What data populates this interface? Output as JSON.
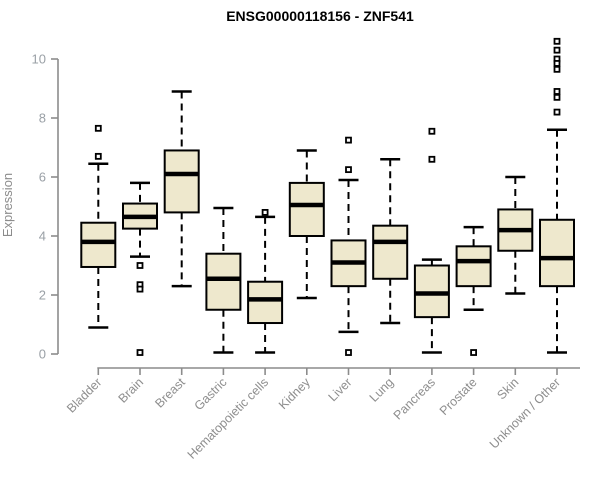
{
  "title": "ENSG00000118156 - ZNF541",
  "chart_data": {
    "type": "box",
    "title": "ENSG00000118156 - ZNF541",
    "xlabel": "",
    "ylabel": "Expression",
    "ylim": [
      0,
      10.7
    ],
    "yticks": [
      0,
      2,
      4,
      6,
      8,
      10
    ],
    "grid": false,
    "legend": "none",
    "categories": [
      "Bladder",
      "Brain",
      "Breast",
      "Gastric",
      "Hematopoietic cells",
      "Kidney",
      "Liver",
      "Lung",
      "Pancreas",
      "Prostate",
      "Skin",
      "Unknown / Other"
    ],
    "boxes": [
      {
        "category": "Bladder",
        "whisker_low": 0.9,
        "q1": 2.95,
        "median": 3.8,
        "q3": 4.45,
        "whisker_high": 6.45,
        "outliers": [
          7.65,
          6.7
        ]
      },
      {
        "category": "Brain",
        "whisker_low": 3.3,
        "q1": 4.25,
        "median": 4.65,
        "q3": 5.1,
        "whisker_high": 5.8,
        "outliers": [
          3.0,
          2.35,
          2.2,
          0.05
        ]
      },
      {
        "category": "Breast",
        "whisker_low": 2.3,
        "q1": 4.8,
        "median": 6.1,
        "q3": 6.9,
        "whisker_high": 8.9,
        "outliers": []
      },
      {
        "category": "Gastric",
        "whisker_low": 0.05,
        "q1": 1.5,
        "median": 2.55,
        "q3": 3.4,
        "whisker_high": 4.95,
        "outliers": []
      },
      {
        "category": "Hematopoietic cells",
        "whisker_low": 0.05,
        "q1": 1.05,
        "median": 1.85,
        "q3": 2.45,
        "whisker_high": 4.65,
        "outliers": [
          4.8
        ]
      },
      {
        "category": "Kidney",
        "whisker_low": 1.9,
        "q1": 4.0,
        "median": 5.05,
        "q3": 5.8,
        "whisker_high": 6.9,
        "outliers": []
      },
      {
        "category": "Liver",
        "whisker_low": 0.75,
        "q1": 2.3,
        "median": 3.1,
        "q3": 3.85,
        "whisker_high": 5.9,
        "outliers": [
          7.25,
          6.25,
          0.05
        ]
      },
      {
        "category": "Lung",
        "whisker_low": 1.05,
        "q1": 2.55,
        "median": 3.8,
        "q3": 4.35,
        "whisker_high": 6.6,
        "outliers": []
      },
      {
        "category": "Pancreas",
        "whisker_low": 0.05,
        "q1": 1.25,
        "median": 2.05,
        "q3": 3.0,
        "whisker_high": 3.2,
        "outliers": [
          7.55,
          6.6
        ]
      },
      {
        "category": "Prostate",
        "whisker_low": 1.5,
        "q1": 2.3,
        "median": 3.15,
        "q3": 3.65,
        "whisker_high": 4.3,
        "outliers": [
          0.05
        ]
      },
      {
        "category": "Skin",
        "whisker_low": 2.05,
        "q1": 3.5,
        "median": 4.2,
        "q3": 4.9,
        "whisker_high": 6.0,
        "outliers": []
      },
      {
        "category": "Unknown / Other",
        "whisker_low": 0.05,
        "q1": 2.3,
        "median": 3.25,
        "q3": 4.55,
        "whisker_high": 7.6,
        "outliers": [
          10.6,
          10.3,
          10.0,
          9.85,
          9.65,
          8.9,
          8.7,
          8.2
        ]
      }
    ]
  },
  "colors": {
    "background": "#ffffff",
    "box_fill": "#eee8cd",
    "box_stroke": "#000000",
    "median": "#000000",
    "whisker": "#000000",
    "outlier_stroke": "#000000",
    "outlier_fill": "#ffffff",
    "axis_line": "#8c8c8c",
    "tick_text": "#9aa0a6",
    "category_text": "#8e8e8e",
    "ylabel_text": "#8c8c8c",
    "title_text": "#000000"
  }
}
